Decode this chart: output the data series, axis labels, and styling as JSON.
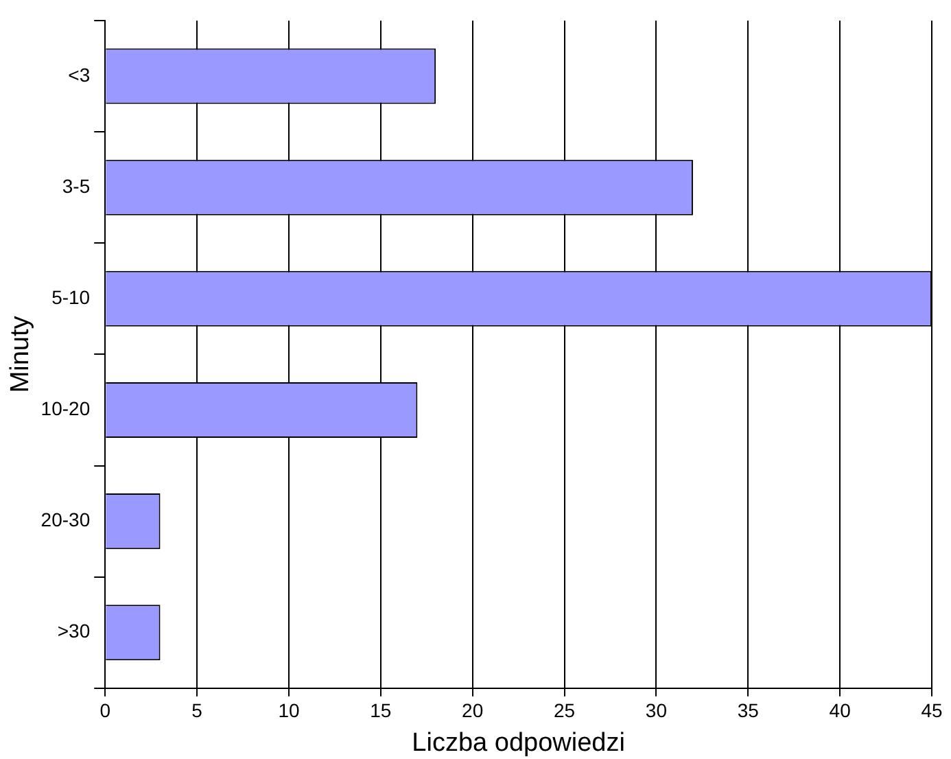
{
  "chart_data": {
    "type": "bar",
    "orientation": "horizontal",
    "xlabel": "Liczba odpowiedzi",
    "ylabel": "Minuty",
    "categories": [
      "<3",
      "3-5",
      "5-10",
      "10-20",
      "20-30",
      ">30"
    ],
    "values": [
      18,
      32,
      45,
      17,
      3,
      3
    ],
    "color": "#9999ff",
    "xlim": [
      0,
      45
    ],
    "xticks": [
      0,
      5,
      10,
      15,
      20,
      25,
      30,
      35,
      40,
      45
    ],
    "grid": "x",
    "legend": false
  }
}
